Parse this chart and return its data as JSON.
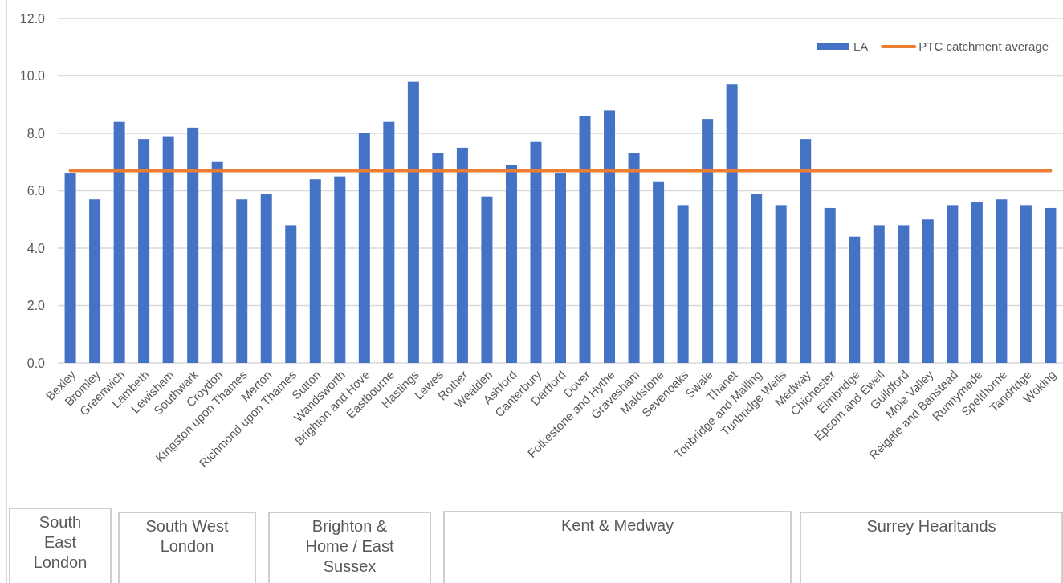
{
  "chart_data": {
    "type": "bar",
    "categories": [
      "Bexley",
      "Bromley",
      "Greenwich",
      "Lambeth",
      "Lewisham",
      "Southwark",
      "Croydon",
      "Kingston upon Thames",
      "Merton",
      "Richmond upon Thames",
      "Sutton",
      "Wandsworth",
      "Brighton and Hove",
      "Eastbourne",
      "Hastings",
      "Lewes",
      "Rother",
      "Wealden",
      "Ashford",
      "Canterbury",
      "Dartford",
      "Dover",
      "Folkestone and Hythe",
      "Gravesham",
      "Maidstone",
      "Sevenoaks",
      "Swale",
      "Thanet",
      "Tonbridge and Malling",
      "Tunbridge Wells",
      "Medway",
      "Chichester",
      "Elmbridge",
      "Epsom and Ewell",
      "Guildford",
      "Mole Valley",
      "Reigate and Banstead",
      "Runnymede",
      "Spelthorne",
      "Tandridge",
      "Woking"
    ],
    "series": [
      {
        "name": "LA",
        "color": "#4472c4",
        "values": [
          6.6,
          5.7,
          8.4,
          7.8,
          7.9,
          8.2,
          7.0,
          5.7,
          5.9,
          4.8,
          6.4,
          6.5,
          8.0,
          8.4,
          9.8,
          7.3,
          7.5,
          5.8,
          6.9,
          7.7,
          6.6,
          8.6,
          8.8,
          7.3,
          6.3,
          5.5,
          8.5,
          9.7,
          5.9,
          5.5,
          7.8,
          5.4,
          4.4,
          4.8,
          4.8,
          5.0,
          5.5,
          5.6,
          5.7,
          5.5,
          5.4
        ]
      },
      {
        "name": "PTC catchment average",
        "type": "line",
        "color": "#ed7d31",
        "values": [
          6.7,
          6.7,
          6.7,
          6.7,
          6.7,
          6.7,
          6.7,
          6.7,
          6.7,
          6.7,
          6.7,
          6.7,
          6.7,
          6.7,
          6.7,
          6.7,
          6.7,
          6.7,
          6.7,
          6.7,
          6.7,
          6.7,
          6.7,
          6.7,
          6.7,
          6.7,
          6.7,
          6.7,
          6.7,
          6.7,
          6.7,
          6.7,
          6.7,
          6.7,
          6.7,
          6.7,
          6.7,
          6.7,
          6.7,
          6.7,
          6.7
        ]
      }
    ],
    "ylim": [
      0,
      12
    ],
    "yticks": [
      {
        "value": 0,
        "label": "0.0"
      },
      {
        "value": 2,
        "label": "2.0"
      },
      {
        "value": 4,
        "label": "4.0"
      },
      {
        "value": 6,
        "label": "6.0"
      },
      {
        "value": 8,
        "label": "8.0"
      },
      {
        "value": 10,
        "label": "10.0"
      },
      {
        "value": 12,
        "label": "12.0"
      }
    ],
    "grid": "y",
    "legend": "top right",
    "marker": "none",
    "line_style": "solid",
    "annotations": [
      "South East London",
      "South West London",
      "Brighton & Home / East Sussex",
      "Kent & Medway",
      "Surrey Hearltands"
    ]
  }
}
